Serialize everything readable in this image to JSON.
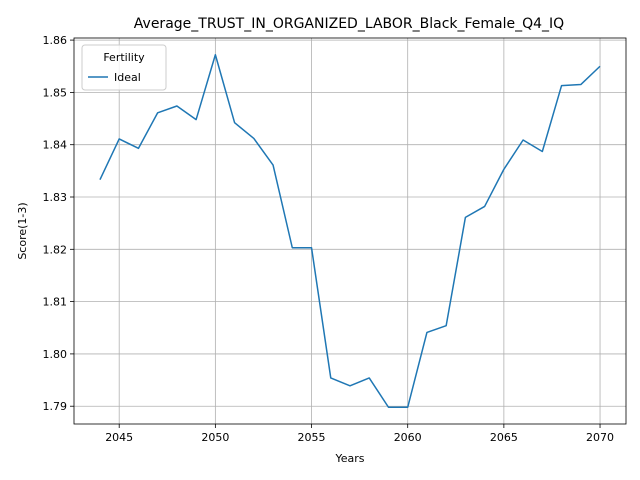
{
  "chart_data": {
    "type": "line",
    "title": "Average_TRUST_IN_ORGANIZED_LABOR_Black_Female_Q4_IQ",
    "xlabel": "Years",
    "ylabel": "Score(1-3)",
    "xlim": [
      2042.65,
      2071.35
    ],
    "ylim": [
      1.7866,
      1.8604
    ],
    "xticks": [
      2045,
      2050,
      2055,
      2060,
      2065,
      2070
    ],
    "yticks": [
      1.79,
      1.8,
      1.81,
      1.82,
      1.83,
      1.84,
      1.85,
      1.86
    ],
    "ytick_labels": [
      "1.79",
      "1.80",
      "1.81",
      "1.82",
      "1.83",
      "1.84",
      "1.85",
      "1.86"
    ],
    "grid": true,
    "legend": {
      "title": "Fertility",
      "placement": "top-left"
    },
    "series": [
      {
        "name": "Ideal",
        "color": "#1f77b4",
        "x": [
          2044,
          2045,
          2046,
          2047,
          2048,
          2049,
          2050,
          2051,
          2052,
          2053,
          2054,
          2055,
          2056,
          2057,
          2058,
          2059,
          2060,
          2061,
          2062,
          2063,
          2064,
          2065,
          2066,
          2067,
          2068,
          2069,
          2070
        ],
        "y": [
          1.8333,
          1.8411,
          1.8393,
          1.8461,
          1.8474,
          1.8448,
          1.8572,
          1.8442,
          1.8412,
          1.8361,
          1.8203,
          1.8203,
          1.7954,
          1.7939,
          1.7954,
          1.7898,
          1.7898,
          1.8041,
          1.8054,
          1.8261,
          1.8282,
          1.8353,
          1.8409,
          1.8387,
          1.8513,
          1.8515,
          1.855
        ]
      }
    ]
  }
}
